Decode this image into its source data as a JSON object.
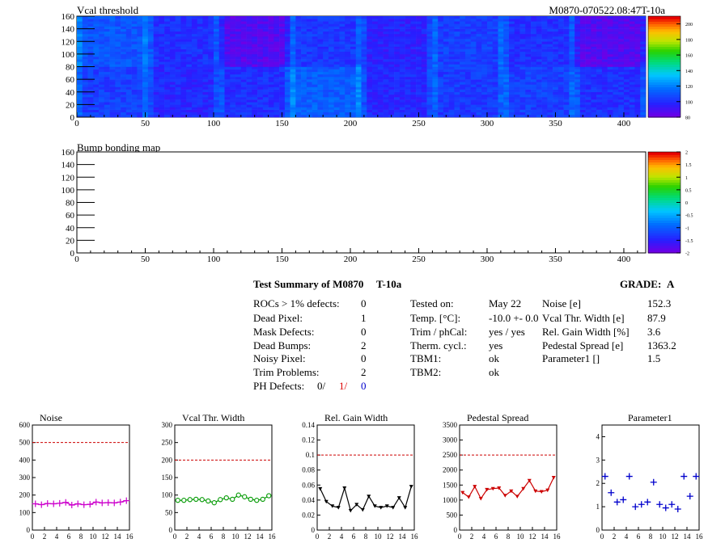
{
  "maps": [
    {
      "title": "Vcal threshold",
      "module_id": "M0870-070522.08:47T-10a",
      "x_ticks": [
        "0",
        "50",
        "100",
        "150",
        "200",
        "250",
        "300",
        "350",
        "400"
      ],
      "y_ticks": [
        "0",
        "20",
        "40",
        "60",
        "80",
        "100",
        "120",
        "140",
        "160"
      ],
      "z_ticks": [
        "80",
        "100",
        "120",
        "140",
        "160",
        "180",
        "200"
      ],
      "x_range": [
        0,
        416
      ],
      "y_range": [
        0,
        160
      ],
      "z_range": [
        80,
        210
      ],
      "roc_means": {
        "top": [
          110,
          100,
          86,
          102,
          96,
          104,
          100,
          86
        ],
        "bottom": [
          104,
          98,
          100,
          112,
          98,
          103,
          104,
          100
        ]
      }
    },
    {
      "title": "Bump bonding map",
      "x_ticks": [
        "0",
        "50",
        "100",
        "150",
        "200",
        "250",
        "300",
        "350",
        "400"
      ],
      "y_ticks": [
        "0",
        "20",
        "40",
        "60",
        "80",
        "100",
        "120",
        "140",
        "160"
      ],
      "z_ticks": [
        "-2",
        "-1.5",
        "-1",
        "-0.5",
        "0",
        "0.5",
        "1",
        "1.5",
        "2"
      ],
      "x_range": [
        0,
        416
      ],
      "y_range": [
        0,
        160
      ],
      "z_range": [
        -2,
        2
      ]
    }
  ],
  "summary": {
    "title": "Test Summary of M0870",
    "test": "T-10a",
    "grade_label": "GRADE:",
    "grade": "A",
    "defects": [
      {
        "label": "ROCs > 1% defects:",
        "value": "0"
      },
      {
        "label": "Dead Pixel:",
        "value": "1"
      },
      {
        "label": "Mask Defects:",
        "value": "0"
      },
      {
        "label": "Dead Bumps:",
        "value": "2"
      },
      {
        "label": "Noisy Pixel:",
        "value": "0"
      },
      {
        "label": "Trim Problems:",
        "value": "2"
      }
    ],
    "ph_label": "PH Defects:",
    "ph_values": [
      "0/",
      "1/",
      "0"
    ],
    "ph_colors": [
      "#000000",
      "#dd0000",
      "#0000cc"
    ],
    "conditions": [
      {
        "label": "Tested on:",
        "value": "May 22"
      },
      {
        "label": "Temp. [°C]:",
        "value": "-10.0 +- 0.0"
      },
      {
        "label": "Trim / phCal:",
        "value": "yes / yes"
      },
      {
        "label": "Therm. cycl.:",
        "value": "yes"
      },
      {
        "label": "TBM1:",
        "value": "ok"
      },
      {
        "label": "TBM2:",
        "value": "ok"
      }
    ],
    "results": [
      {
        "label": "Noise [e]",
        "value": "152.3"
      },
      {
        "label": "Vcal Thr. Width [e]",
        "value": "87.9"
      },
      {
        "label": "Rel. Gain Width [%]",
        "value": "3.6"
      },
      {
        "label": "Pedestal Spread [e]",
        "value": "1363.2"
      },
      {
        "label": "Parameter1 []",
        "value": "1.5"
      }
    ]
  },
  "chart_data": [
    {
      "type": "line",
      "title": "Noise",
      "color": "#cc00cc",
      "marker": "plus",
      "x": [
        0,
        1,
        2,
        3,
        4,
        5,
        6,
        7,
        8,
        9,
        10,
        11,
        12,
        13,
        14,
        15
      ],
      "values": [
        150,
        145,
        152,
        150,
        153,
        158,
        143,
        150,
        145,
        147,
        160,
        155,
        157,
        155,
        160,
        168
      ],
      "ylim": [
        0,
        600
      ],
      "threshold": 500,
      "y_ticks": [
        "0",
        "100",
        "200",
        "300",
        "400",
        "500",
        "600"
      ],
      "x_ticks": [
        "0",
        "2",
        "4",
        "6",
        "8",
        "10",
        "12",
        "14",
        "16"
      ]
    },
    {
      "type": "line",
      "title": "Vcal Thr. Width",
      "color": "#009900",
      "marker": "circle",
      "x": [
        0,
        1,
        2,
        3,
        4,
        5,
        6,
        7,
        8,
        9,
        10,
        11,
        12,
        13,
        14,
        15
      ],
      "values": [
        85,
        85,
        87,
        88,
        87,
        83,
        78,
        87,
        92,
        88,
        100,
        95,
        88,
        85,
        88,
        98
      ],
      "ylim": [
        0,
        300
      ],
      "threshold": 200,
      "y_ticks": [
        "0",
        "50",
        "100",
        "150",
        "200",
        "250",
        "300"
      ],
      "x_ticks": [
        "0",
        "2",
        "4",
        "6",
        "8",
        "10",
        "12",
        "14",
        "16"
      ]
    },
    {
      "type": "line",
      "title": "Rel. Gain Width",
      "color": "#000000",
      "marker": "triangle",
      "x": [
        0,
        1,
        2,
        3,
        4,
        5,
        6,
        7,
        8,
        9,
        10,
        11,
        12,
        13,
        14,
        15
      ],
      "values": [
        0.055,
        0.038,
        0.032,
        0.03,
        0.056,
        0.026,
        0.034,
        0.027,
        0.045,
        0.032,
        0.03,
        0.032,
        0.03,
        0.043,
        0.03,
        0.058
      ],
      "ylim": [
        0,
        0.14
      ],
      "threshold": 0.1,
      "y_ticks": [
        "0",
        "0.02",
        "0.04",
        "0.06",
        "0.08",
        "0.1",
        "0.12",
        "0.14"
      ],
      "x_ticks": [
        "0",
        "2",
        "4",
        "6",
        "8",
        "10",
        "12",
        "14",
        "16"
      ]
    },
    {
      "type": "line",
      "title": "Pedestal Spread",
      "color": "#cc0000",
      "marker": "triangle",
      "x": [
        0,
        1,
        2,
        3,
        4,
        5,
        6,
        7,
        8,
        9,
        10,
        11,
        12,
        13,
        14,
        15
      ],
      "values": [
        1250,
        1100,
        1450,
        1050,
        1350,
        1380,
        1400,
        1150,
        1300,
        1120,
        1380,
        1650,
        1300,
        1280,
        1330,
        1750
      ],
      "ylim": [
        0,
        3500
      ],
      "threshold": 2500,
      "y_ticks": [
        "0",
        "500",
        "1000",
        "1500",
        "2000",
        "2500",
        "3000",
        "3500"
      ],
      "x_ticks": [
        "0",
        "2",
        "4",
        "6",
        "8",
        "10",
        "12",
        "14",
        "16"
      ]
    },
    {
      "type": "scatter",
      "title": "Parameter1",
      "color": "#0000cc",
      "marker": "cross",
      "x": [
        0,
        1,
        2,
        3,
        4,
        5,
        6,
        7,
        8,
        9,
        10,
        11,
        12,
        13,
        14,
        15
      ],
      "values": [
        2.3,
        1.6,
        1.2,
        1.3,
        2.3,
        1.0,
        1.1,
        1.2,
        2.05,
        1.1,
        0.95,
        1.1,
        0.9,
        2.3,
        1.45,
        2.3
      ],
      "ylim": [
        0,
        4.5
      ],
      "y_ticks": [
        "0",
        "1",
        "2",
        "3",
        "4"
      ],
      "x_ticks": [
        "0",
        "2",
        "4",
        "6",
        "8",
        "10",
        "12",
        "14",
        "16"
      ]
    }
  ]
}
